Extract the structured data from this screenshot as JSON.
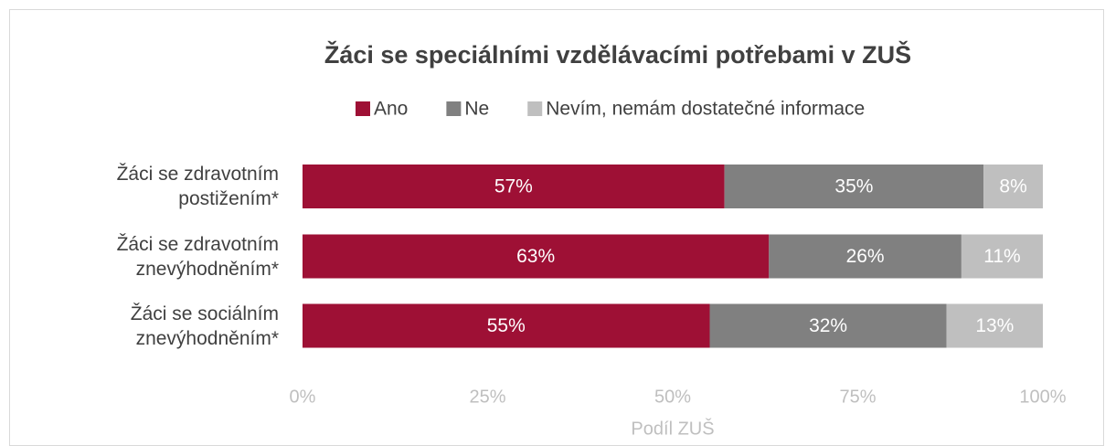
{
  "chart_data": {
    "type": "stacked_barh",
    "title": "Žáci se speciálními vzdělávacími potřebami v ZUŠ",
    "categories": [
      "Žáci se zdravotním postižením*",
      "Žáci se zdravotním znevýhodněním*",
      "Žáci se sociálním znevýhodněním*"
    ],
    "series": [
      {
        "name": "Ano",
        "color": "#9e1035",
        "values": [
          57,
          63,
          55
        ],
        "value_labels": [
          "57%",
          "63%",
          "55%"
        ]
      },
      {
        "name": "Ne",
        "color": "#808080",
        "values": [
          35,
          26,
          32
        ],
        "value_labels": [
          "35%",
          "26%",
          "32%"
        ]
      },
      {
        "name": "Nevím, nemám dostatečné informace",
        "color": "#bfbfbf",
        "values": [
          8,
          11,
          13
        ],
        "value_labels": [
          "8%",
          "11%",
          "13%"
        ]
      }
    ],
    "xlabel": "Podíl ZUŠ",
    "xlim": [
      0,
      100
    ],
    "xticks": [
      {
        "value": 0,
        "label": "0%"
      },
      {
        "value": 25,
        "label": "25%"
      },
      {
        "value": 50,
        "label": "50%"
      },
      {
        "value": 75,
        "label": "75%"
      },
      {
        "value": 100,
        "label": "100%"
      }
    ],
    "grid": false,
    "legend": "top"
  }
}
